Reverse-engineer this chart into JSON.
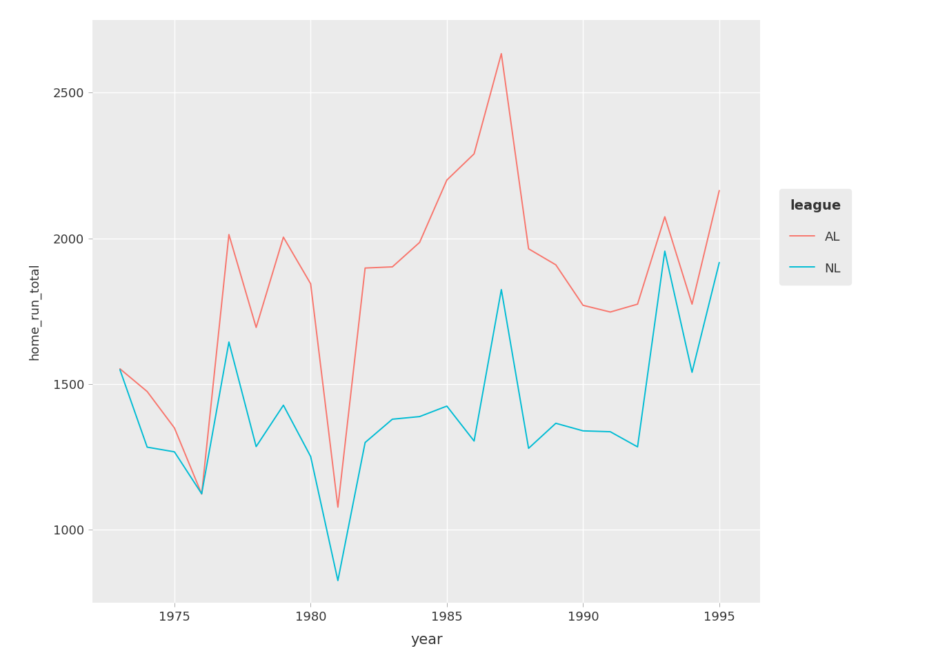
{
  "AL_years": [
    1973,
    1974,
    1975,
    1976,
    1977,
    1978,
    1979,
    1980,
    1981,
    1982,
    1983,
    1984,
    1985,
    1986,
    1987,
    1988,
    1989,
    1990,
    1991,
    1992,
    1993,
    1994,
    1995
  ],
  "AL_values": [
    1552,
    1474,
    1349,
    1122,
    2013,
    1694,
    2004,
    1844,
    1077,
    1898,
    1902,
    1986,
    2200,
    2290,
    2634,
    1964,
    1909,
    1770,
    1747,
    1774,
    2074,
    1774,
    2164
  ],
  "NL_years": [
    1973,
    1974,
    1975,
    1976,
    1977,
    1978,
    1979,
    1980,
    1981,
    1982,
    1983,
    1984,
    1985,
    1986,
    1987,
    1988,
    1989,
    1990,
    1991,
    1992,
    1993,
    1994,
    1995
  ],
  "NL_values": [
    1549,
    1283,
    1267,
    1123,
    1644,
    1285,
    1427,
    1251,
    825,
    1299,
    1379,
    1388,
    1424,
    1304,
    1824,
    1279,
    1365,
    1339,
    1336,
    1284,
    1956,
    1540,
    1917
  ],
  "AL_color": "#F8766D",
  "NL_color": "#00BCD4",
  "panel_bg_color": "#EBEBEB",
  "outer_bg_color": "#FFFFFF",
  "grid_color": "#FFFFFF",
  "xlabel": "year",
  "ylabel": "home_run_total",
  "legend_title": "league",
  "legend_AL": "AL",
  "legend_NL": "NL",
  "ylim": [
    750,
    2750
  ],
  "xlim": [
    1972.0,
    1996.5
  ],
  "yticks": [
    1000,
    1500,
    2000,
    2500
  ],
  "xticks": [
    1975,
    1980,
    1985,
    1990,
    1995
  ]
}
